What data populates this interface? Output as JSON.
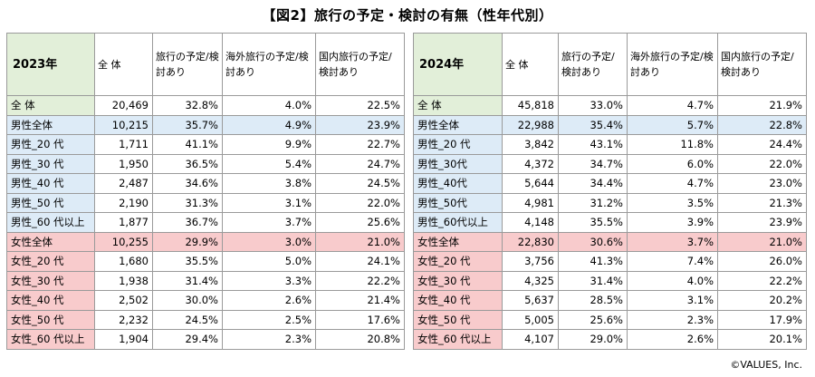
{
  "title": "【図2】旅行の予定・検討の有無（性年代別）",
  "columns": [
    "全 体",
    "旅行の予定/検討あり",
    "海外旅行の予定/検討あり",
    "国内旅行の予定/検討あり"
  ],
  "footer": "©VALUES, Inc.",
  "colors": {
    "total": "#e2efd9",
    "male": "#ddebf7",
    "female": "#f8cbcc"
  },
  "tables": [
    {
      "year": "2023年",
      "rows": [
        {
          "label": "全 体",
          "n": "20,469",
          "travel": "32.8%",
          "overseas": "4.0%",
          "domestic": "22.5%",
          "group": "total"
        },
        {
          "label": "男性全体",
          "n": "10,215",
          "travel": "35.7%",
          "overseas": "4.9%",
          "domestic": "23.9%",
          "group": "male-total"
        },
        {
          "label": "男性_20 代",
          "n": "1,711",
          "travel": "41.1%",
          "overseas": "9.9%",
          "domestic": "22.7%",
          "group": "male"
        },
        {
          "label": "男性_30 代",
          "n": "1,950",
          "travel": "36.5%",
          "overseas": "5.4%",
          "domestic": "24.7%",
          "group": "male"
        },
        {
          "label": "男性_40 代",
          "n": "2,487",
          "travel": "34.6%",
          "overseas": "3.8%",
          "domestic": "24.5%",
          "group": "male"
        },
        {
          "label": "男性_50 代",
          "n": "2,190",
          "travel": "31.3%",
          "overseas": "3.1%",
          "domestic": "22.0%",
          "group": "male"
        },
        {
          "label": "男性_60 代以上",
          "n": "1,877",
          "travel": "36.7%",
          "overseas": "3.7%",
          "domestic": "25.6%",
          "group": "male"
        },
        {
          "label": "女性全体",
          "n": "10,255",
          "travel": "29.9%",
          "overseas": "3.0%",
          "domestic": "21.0%",
          "group": "female-total"
        },
        {
          "label": "女性_20 代",
          "n": "1,680",
          "travel": "35.5%",
          "overseas": "5.0%",
          "domestic": "24.1%",
          "group": "female"
        },
        {
          "label": "女性_30 代",
          "n": "1,938",
          "travel": "31.4%",
          "overseas": "3.3%",
          "domestic": "22.2%",
          "group": "female"
        },
        {
          "label": "女性_40 代",
          "n": "2,502",
          "travel": "30.0%",
          "overseas": "2.6%",
          "domestic": "21.4%",
          "group": "female"
        },
        {
          "label": "女性_50 代",
          "n": "2,232",
          "travel": "24.5%",
          "overseas": "2.5%",
          "domestic": "17.6%",
          "group": "female"
        },
        {
          "label": "女性_60 代以上",
          "n": "1,904",
          "travel": "29.4%",
          "overseas": "2.3%",
          "domestic": "20.8%",
          "group": "female"
        }
      ]
    },
    {
      "year": "2024年",
      "rows": [
        {
          "label": "全 体",
          "n": "45,818",
          "travel": "33.0%",
          "overseas": "4.7%",
          "domestic": "21.9%",
          "group": "total"
        },
        {
          "label": "男性全体",
          "n": "22,988",
          "travel": "35.4%",
          "overseas": "5.7%",
          "domestic": "22.8%",
          "group": "male-total"
        },
        {
          "label": "男性_20 代",
          "n": "3,842",
          "travel": "43.1%",
          "overseas": "11.8%",
          "domestic": "24.4%",
          "group": "male"
        },
        {
          "label": "男性_30代",
          "n": "4,372",
          "travel": "34.7%",
          "overseas": "6.0%",
          "domestic": "22.0%",
          "group": "male"
        },
        {
          "label": "男性_40代",
          "n": "5,644",
          "travel": "34.4%",
          "overseas": "4.7%",
          "domestic": "23.0%",
          "group": "male"
        },
        {
          "label": "男性_50代",
          "n": "4,981",
          "travel": "31.2%",
          "overseas": "3.5%",
          "domestic": "21.3%",
          "group": "male"
        },
        {
          "label": "男性_60代以上",
          "n": "4,148",
          "travel": "35.5%",
          "overseas": "3.9%",
          "domestic": "23.9%",
          "group": "male"
        },
        {
          "label": "女性全体",
          "n": "22,830",
          "travel": "30.6%",
          "overseas": "3.7%",
          "domestic": "21.0%",
          "group": "female-total"
        },
        {
          "label": "女性_20 代",
          "n": "3,756",
          "travel": "41.3%",
          "overseas": "7.4%",
          "domestic": "26.0%",
          "group": "female"
        },
        {
          "label": "女性_30 代",
          "n": "4,325",
          "travel": "31.4%",
          "overseas": "4.0%",
          "domestic": "22.2%",
          "group": "female"
        },
        {
          "label": "女性_40 代",
          "n": "5,637",
          "travel": "28.5%",
          "overseas": "3.1%",
          "domestic": "20.2%",
          "group": "female"
        },
        {
          "label": "女性_50 代",
          "n": "5,005",
          "travel": "25.6%",
          "overseas": "2.3%",
          "domestic": "17.9%",
          "group": "female"
        },
        {
          "label": "女性_60 代以上",
          "n": "4,107",
          "travel": "29.0%",
          "overseas": "2.6%",
          "domestic": "20.1%",
          "group": "female"
        }
      ]
    }
  ]
}
